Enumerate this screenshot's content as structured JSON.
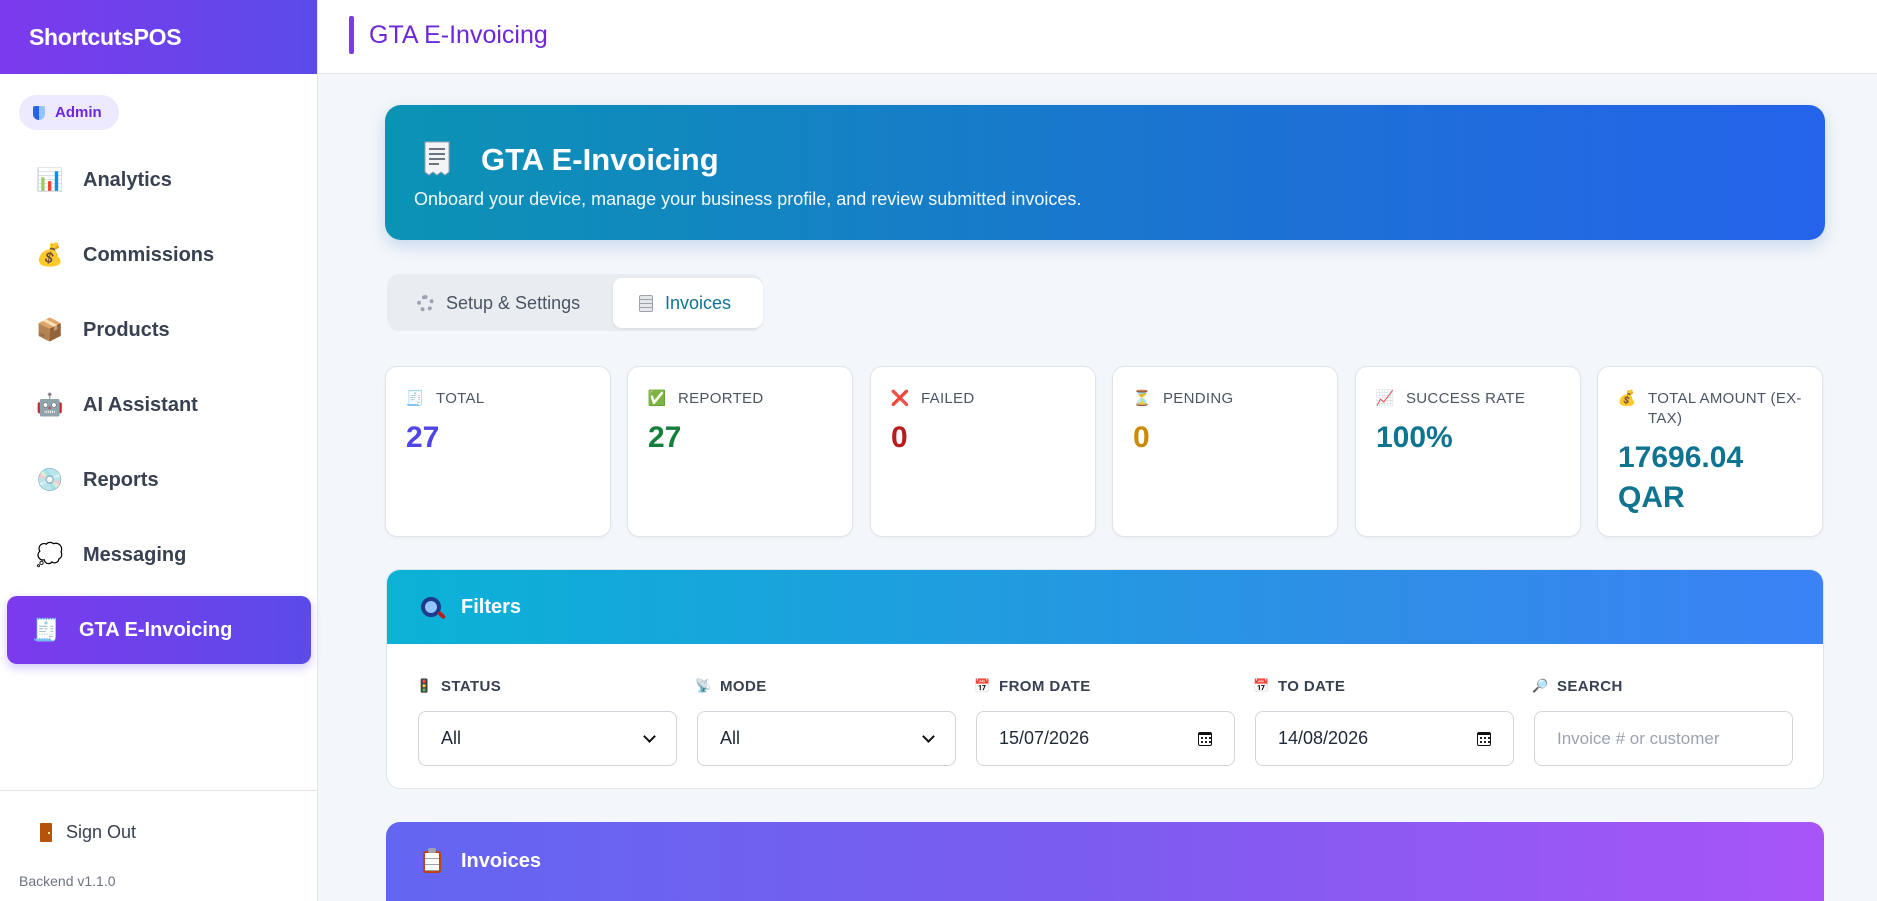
{
  "app": {
    "brand": "ShortcutsPOS",
    "role": "Admin",
    "version": "Backend v1.1.0",
    "signout": "Sign Out"
  },
  "nav": [
    {
      "label": "Analytics",
      "icon": "bar-chart-icon",
      "glyph": "📊"
    },
    {
      "label": "Commissions",
      "icon": "money-bag-icon",
      "glyph": "💰"
    },
    {
      "label": "Products",
      "icon": "package-icon",
      "glyph": "📦"
    },
    {
      "label": "AI Assistant",
      "icon": "robot-icon",
      "glyph": "🤖"
    },
    {
      "label": "Reports",
      "icon": "report-icon",
      "glyph": "💿"
    },
    {
      "label": "Messaging",
      "icon": "speech-bubble-icon",
      "glyph": "💭"
    },
    {
      "label": "GTA E-Invoicing",
      "icon": "receipt-icon",
      "glyph": "🧾",
      "active": true
    }
  ],
  "header": {
    "title": "GTA E-Invoicing"
  },
  "hero": {
    "title": "GTA E-Invoicing",
    "subtitle": "Onboard your device, manage your business profile, and review submitted invoices."
  },
  "tabs": [
    {
      "label": "Setup & Settings",
      "active": false
    },
    {
      "label": "Invoices",
      "active": true
    }
  ],
  "stats": [
    {
      "label": "TOTAL",
      "value": "27",
      "color": "#4f46e5",
      "icon": "receipt-icon",
      "glyph": "🧾"
    },
    {
      "label": "REPORTED",
      "value": "27",
      "color": "#15803d",
      "icon": "check-box-icon",
      "glyph": "✅"
    },
    {
      "label": "FAILED",
      "value": "0",
      "color": "#b91c1c",
      "icon": "cross-icon",
      "glyph": "❌"
    },
    {
      "label": "PENDING",
      "value": "0",
      "color": "#ca8a04",
      "icon": "hourglass-icon",
      "glyph": "⏳"
    },
    {
      "label": "SUCCESS RATE",
      "value": "100%",
      "color": "#0e7490",
      "icon": "trend-chart-icon",
      "glyph": "📈"
    },
    {
      "label": "TOTAL AMOUNT (EX-TAX)",
      "value": "17696.04 QAR",
      "color": "#0e7490",
      "icon": "money-bag-icon",
      "glyph": "💰"
    }
  ],
  "filters": {
    "title": "Filters",
    "status": {
      "label": "STATUS",
      "value": "All",
      "icon": "traffic-light-icon",
      "glyph": "🚦"
    },
    "mode": {
      "label": "MODE",
      "value": "All",
      "icon": "satellite-icon",
      "glyph": "📡"
    },
    "from_date": {
      "label": "FROM DATE",
      "value": "15/07/2026",
      "icon": "calendar-icon",
      "glyph": "📅"
    },
    "to_date": {
      "label": "TO DATE",
      "value": "14/08/2026",
      "icon": "calendar-icon",
      "glyph": "📅"
    },
    "search": {
      "label": "SEARCH",
      "placeholder": "Invoice # or customer",
      "icon": "magnifier-icon",
      "glyph": "🔎"
    }
  },
  "invoices": {
    "title": "Invoices"
  }
}
